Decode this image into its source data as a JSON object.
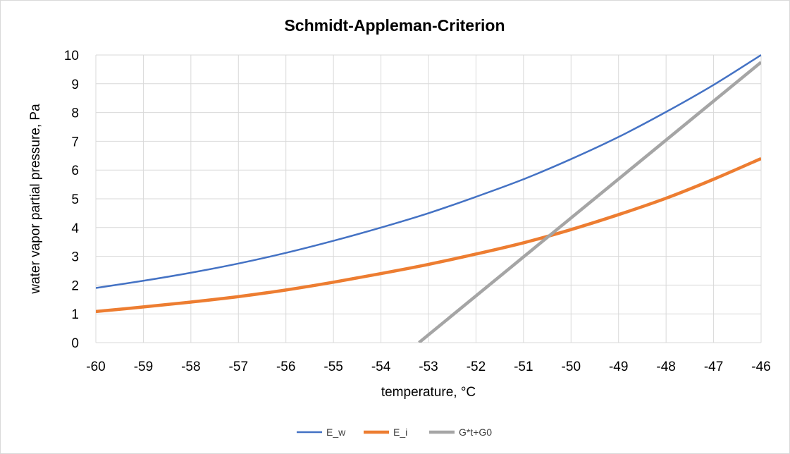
{
  "chart_data": {
    "type": "line",
    "title": "Schmidt-Appleman-Criterion",
    "xlabel": "temperature, °C",
    "ylabel": "water vapor partial pressure, Pa",
    "xlim": [
      -60,
      -46
    ],
    "ylim": [
      0,
      10
    ],
    "x_ticks": [
      "-60",
      "-59",
      "-58",
      "-57",
      "-56",
      "-55",
      "-54",
      "-53",
      "-52",
      "-51",
      "-50",
      "-49",
      "-48",
      "-47",
      "-46"
    ],
    "y_ticks": [
      "0",
      "1",
      "2",
      "3",
      "4",
      "5",
      "6",
      "7",
      "8",
      "9",
      "10"
    ],
    "grid": true,
    "legend_position": "bottom",
    "series": [
      {
        "name": "E_w",
        "color": "#4472c4",
        "x": [
          -60,
          -59,
          -58,
          -57,
          -56,
          -55,
          -54,
          -53,
          -52,
          -51,
          -50,
          -49,
          -48,
          -47,
          -46
        ],
        "y": [
          1.9,
          2.15,
          2.43,
          2.75,
          3.12,
          3.54,
          4.0,
          4.5,
          5.07,
          5.68,
          6.38,
          7.15,
          8.02,
          8.96,
          10.0
        ]
      },
      {
        "name": "E_i",
        "color": "#ed7d31",
        "x": [
          -60,
          -59,
          -58,
          -57,
          -56,
          -55,
          -54,
          -53,
          -52,
          -51,
          -50,
          -49,
          -48,
          -47,
          -46
        ],
        "y": [
          1.08,
          1.24,
          1.41,
          1.6,
          1.83,
          2.1,
          2.4,
          2.72,
          3.08,
          3.47,
          3.93,
          4.45,
          5.02,
          5.68,
          6.4
        ]
      },
      {
        "name": "G*t+G0",
        "color": "#a5a5a5",
        "x": [
          -53.2,
          -46
        ],
        "y": [
          0,
          9.75
        ]
      }
    ]
  }
}
